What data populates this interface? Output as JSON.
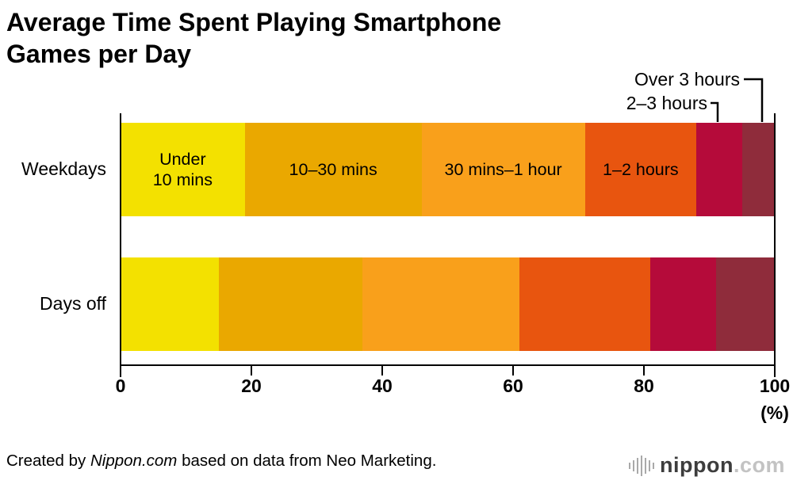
{
  "page": {
    "title_line1": "Average Time Spent Playing Smartphone",
    "title_line2": "Games per Day"
  },
  "chart_data": {
    "type": "bar",
    "stacked": true,
    "orientation": "horizontal",
    "title": "Average Time Spent Playing Smartphone Games per Day",
    "unit": "%",
    "categories": [
      "Weekdays",
      "Days off"
    ],
    "segments": [
      "Under 10 mins",
      "10–30 mins",
      "30 mins–1 hour",
      "1–2 hours",
      "2–3 hours",
      "Over 3 hours"
    ],
    "colors": [
      "#f3e100",
      "#eaa800",
      "#f9a01b",
      "#e8550f",
      "#b50b3a",
      "#8f2c3b"
    ],
    "series": [
      {
        "name": "Weekdays",
        "values": [
          19,
          27,
          25,
          17,
          7,
          5
        ]
      },
      {
        "name": "Days off",
        "values": [
          15,
          22,
          24,
          20,
          10,
          9
        ]
      }
    ],
    "inbar_labels": [
      "Under\n10 mins",
      "10–30 mins",
      "30 mins–1 hour",
      "1–2 hours",
      "",
      ""
    ],
    "x_ticks": [
      "0",
      "20",
      "40",
      "60",
      "80",
      "100"
    ],
    "xlim": [
      0,
      100
    ],
    "x_axis_unit": "(%)",
    "grid": false,
    "legend": "none — labels inside bars, small segments labeled via callouts"
  },
  "footer": {
    "credit_prefix": "Created by ",
    "credit_source": "Nippon.com",
    "credit_suffix": " based on data from Neo Marketing.",
    "logo_word": "nippon",
    "logo_tld": ".com"
  }
}
